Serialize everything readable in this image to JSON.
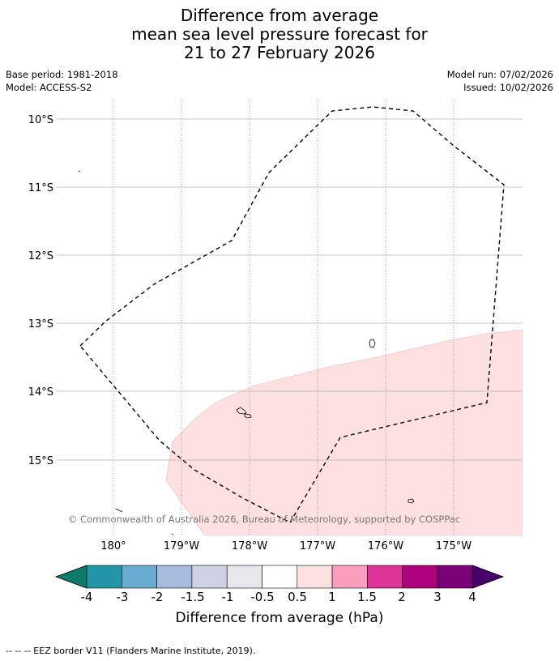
{
  "title": {
    "line1": "Difference from average",
    "line2": "mean sea level pressure forecast for",
    "line3": "21 to 27 February 2026"
  },
  "meta": {
    "base_period": "Base period: 1981-2018",
    "model": "Model: ACCESS-S2",
    "model_run": "Model run: 07/02/2026",
    "issued": "Issued: 10/02/2026"
  },
  "map": {
    "lat_labels": [
      "10°S",
      "11°S",
      "12°S",
      "13°S",
      "14°S",
      "15°S"
    ],
    "lon_labels": [
      "180°",
      "179°W",
      "178°W",
      "177°W",
      "176°W",
      "175°W"
    ],
    "copyright": "© Commonwealth of Australia 2026, Bureau of Meteorology, supported by COSPPac",
    "shaded_category": "0.5 to 1",
    "colors": {
      "shaded": "#fde0df",
      "grid": "#b0b0b0",
      "coast": "#000000",
      "eez": "#000000",
      "copyright_text": "#777777"
    }
  },
  "colorbar": {
    "ticks": [
      "-4",
      "-3",
      "-2",
      "-1.5",
      "-1",
      "-0.5",
      "0.5",
      "1",
      "1.5",
      "2",
      "3",
      "4"
    ],
    "colors": [
      "#0e7a6a",
      "#2396a6",
      "#6aabd2",
      "#a7bcdc",
      "#cfd0e6",
      "#e8e8ec",
      "#ffffff",
      "#fde0df",
      "#f79fbd",
      "#dd3497",
      "#ae017e",
      "#7a0177",
      "#49006a"
    ],
    "label": "Difference from average (hPa)"
  },
  "footnote": "--  --  -- EEZ border V11 (Flanders Marine Institute, 2019)."
}
